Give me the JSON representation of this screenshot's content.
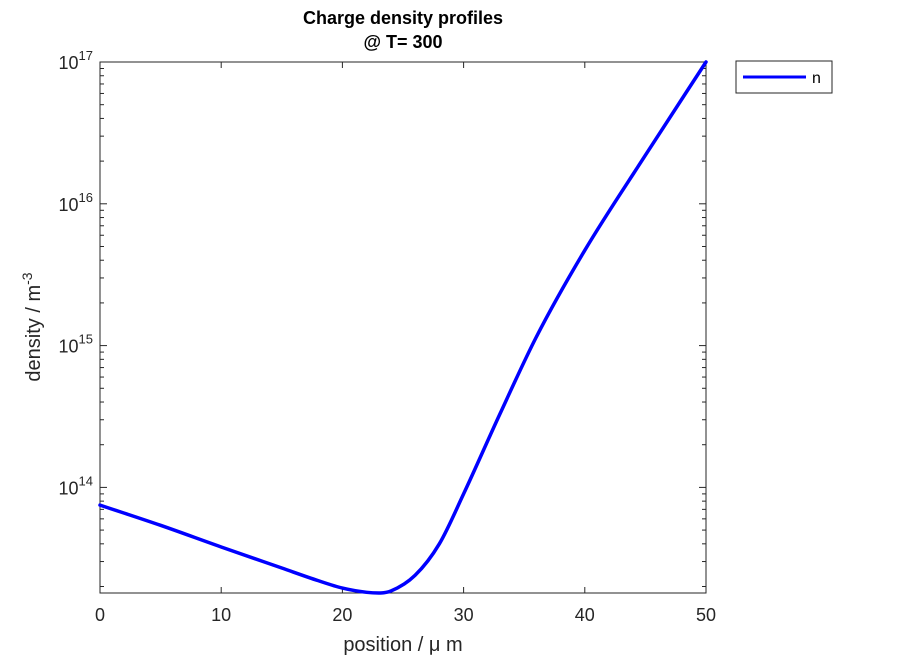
{
  "chart_data": {
    "type": "line",
    "title": "Charge density profiles",
    "subtitle": "@ T= 300",
    "xlabel": "position / μ m",
    "ylabel": "density / m",
    "ylabel_exponent": "-3",
    "xlim": [
      0,
      50
    ],
    "ylim": [
      18000000000000,
      100000000000000000
    ],
    "yscale": "log",
    "grid": false,
    "legend_position": "outside-top-right",
    "x_ticks": [
      0,
      10,
      20,
      30,
      40,
      50
    ],
    "x_tick_labels": [
      "0",
      "10",
      "20",
      "30",
      "40",
      "50"
    ],
    "y_ticks": [
      {
        "value": 100000000000000,
        "base": "10",
        "exp": "14"
      },
      {
        "value": 1000000000000000,
        "base": "10",
        "exp": "15"
      },
      {
        "value": 10000000000000000,
        "base": "10",
        "exp": "16"
      },
      {
        "value": 100000000000000000,
        "base": "10",
        "exp": "17"
      }
    ],
    "series": [
      {
        "name": "n",
        "color": "#0000ff",
        "x": [
          0,
          5,
          10,
          15,
          18,
          20,
          22,
          23,
          24,
          26,
          28,
          30,
          33,
          36,
          40,
          45,
          50
        ],
        "y": [
          75000000000000,
          54000000000000,
          38000000000000,
          27000000000000,
          22000000000000,
          19500000000000,
          18200000000000,
          18000000000000,
          18600000000000,
          24000000000000,
          40000000000000,
          90000000000000,
          330000000000000,
          1150000000000000,
          4700000000000000,
          22000000000000000,
          100000000000000000
        ]
      }
    ]
  }
}
